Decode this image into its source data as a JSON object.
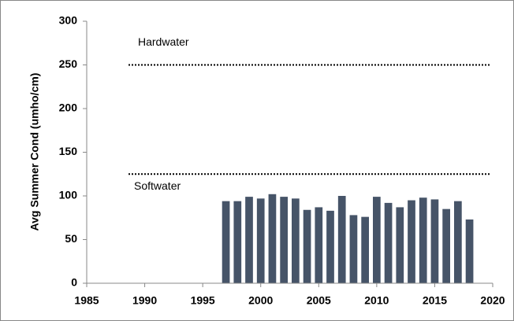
{
  "chart_data": {
    "type": "bar",
    "y_label": "Avg Summer Cond (umho/cm)",
    "x": [
      1997,
      1998,
      1999,
      2000,
      2001,
      2002,
      2003,
      2004,
      2005,
      2006,
      2007,
      2008,
      2009,
      2010,
      2011,
      2012,
      2013,
      2014,
      2015,
      2016,
      2017,
      2018
    ],
    "values": [
      94,
      94,
      99,
      97,
      102,
      99,
      97,
      84,
      87,
      83,
      100,
      78,
      76,
      99,
      92,
      87,
      95,
      98,
      96,
      85,
      94,
      73
    ],
    "color": "#465468",
    "xlim": [
      1985,
      2020
    ],
    "xticks": [
      1985,
      1990,
      1995,
      2000,
      2005,
      2010,
      2015,
      2020
    ],
    "ylim": [
      0,
      300
    ],
    "yticks": [
      0,
      50,
      100,
      150,
      200,
      250,
      300
    ],
    "reference_lines": [
      {
        "value": 250,
        "label": "Hardwater"
      },
      {
        "value": 125,
        "label": "Softwater"
      }
    ]
  }
}
